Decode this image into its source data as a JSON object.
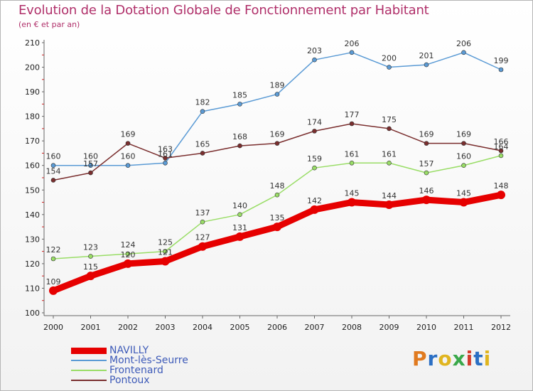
{
  "title": "Evolution de la Dotation Globale de Fonctionnement par Habitant",
  "subtitle": "(en € et par an)",
  "logo": {
    "text": "Proxiti",
    "colors": [
      "#e07a1f",
      "#2b6fc4",
      "#e0b51f",
      "#3aa84a",
      "#d43c2c",
      "#2b6fc4",
      "#e0b51f"
    ]
  },
  "chart_data": {
    "type": "line",
    "x": [
      "2000",
      "2001",
      "2002",
      "2003",
      "2004",
      "2005",
      "2006",
      "2007",
      "2008",
      "2009",
      "2010",
      "2011",
      "2012"
    ],
    "ylim": [
      100,
      210
    ],
    "yticks": [
      "100",
      "110",
      "120",
      "130",
      "140",
      "150",
      "160",
      "170",
      "180",
      "190",
      "200",
      "210"
    ],
    "grid": false,
    "legend_position": "bottom-left",
    "series": [
      {
        "name": "NAVILLY",
        "color": "#e60000",
        "values": [
          109,
          115,
          120,
          121,
          127,
          131,
          135,
          142,
          145,
          144,
          146,
          145,
          148
        ]
      },
      {
        "name": "Mont-lès-Seurre",
        "color": "#5b9bd5",
        "values": [
          160,
          160,
          160,
          161,
          182,
          185,
          189,
          203,
          206,
          200,
          201,
          206,
          199
        ]
      },
      {
        "name": "Frontenard",
        "color": "#99dd66",
        "values": [
          122,
          123,
          124,
          125,
          137,
          140,
          148,
          159,
          161,
          161,
          157,
          160,
          164
        ]
      },
      {
        "name": "Pontoux",
        "color": "#7a2e2e",
        "values": [
          154,
          157,
          169,
          163,
          165,
          168,
          169,
          174,
          177,
          175,
          169,
          169,
          166
        ]
      }
    ]
  }
}
